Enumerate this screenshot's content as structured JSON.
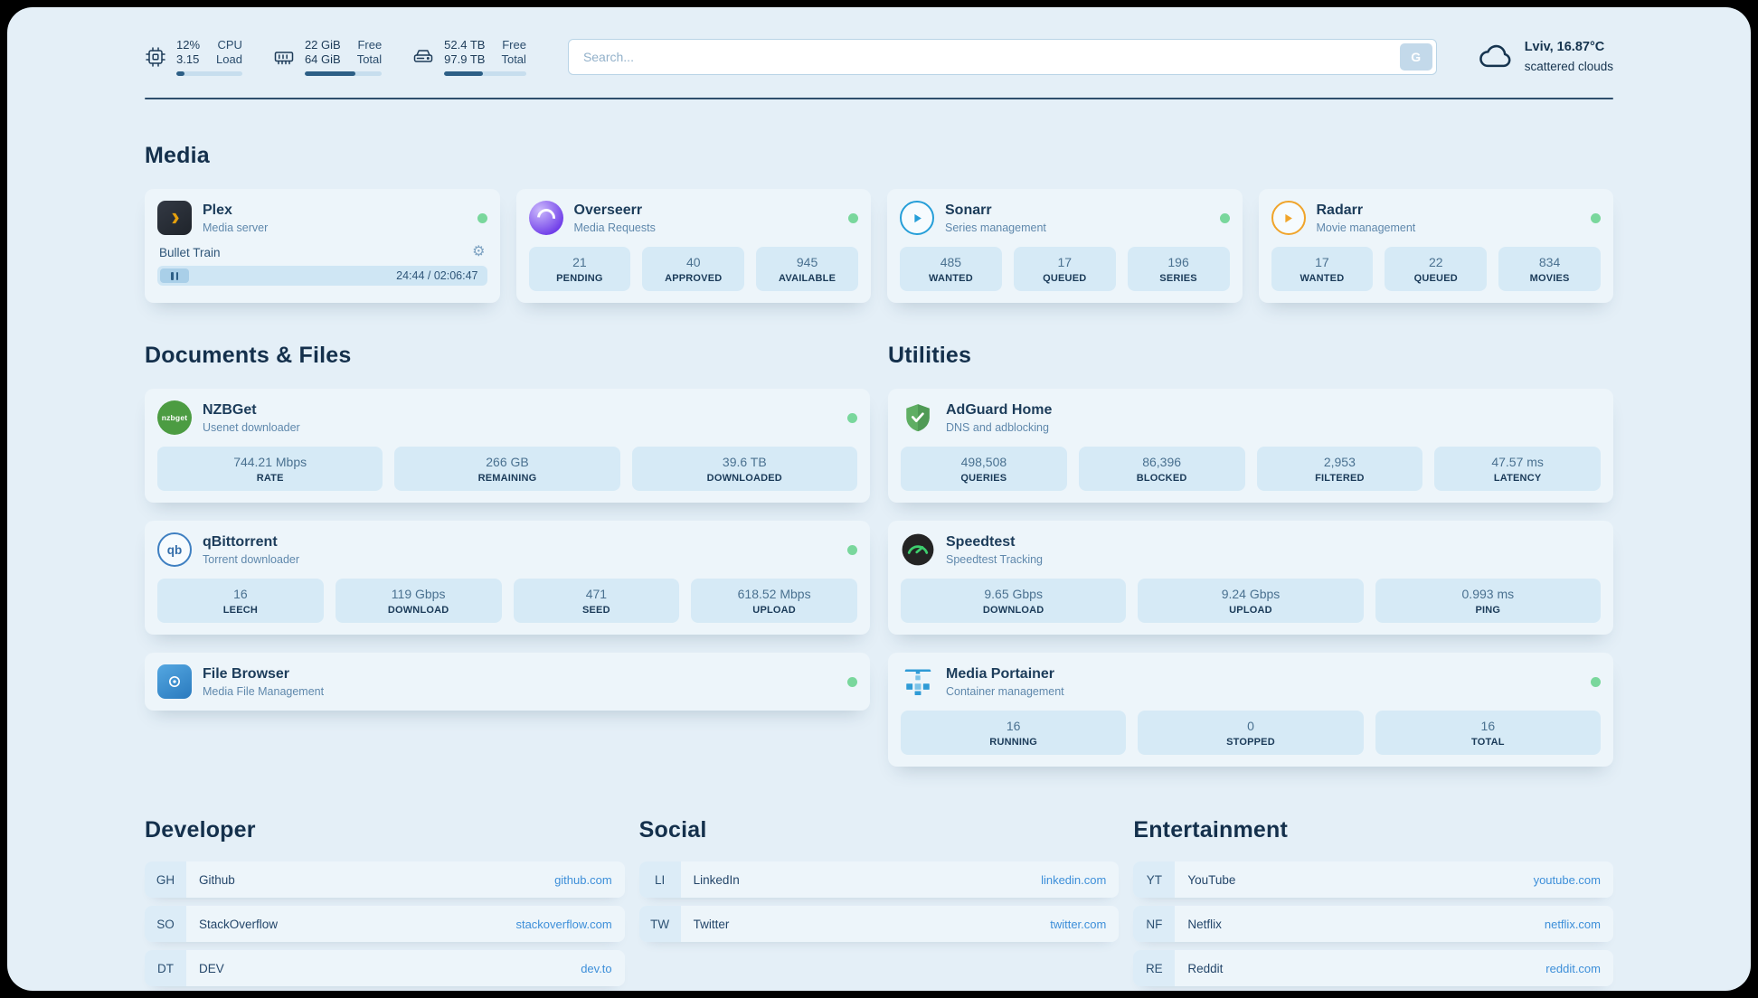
{
  "topbar": {
    "cpu": {
      "percent": "12%",
      "load": "3.15",
      "label_percent": "CPU",
      "label_load": "Load",
      "progress_pct": 12
    },
    "ram": {
      "free": "22 GiB",
      "total": "64 GiB",
      "label_free": "Free",
      "label_total": "Total",
      "progress_pct": 66
    },
    "disk": {
      "free": "52.4 TB",
      "total": "97.9 TB",
      "label_free": "Free",
      "label_total": "Total",
      "progress_pct": 47
    },
    "search": {
      "placeholder": "Search...",
      "button_label": "G"
    },
    "weather": {
      "location": "Lviv, 16.87°C",
      "condition": "scattered clouds"
    }
  },
  "sections": {
    "media": "Media",
    "documents": "Documents & Files",
    "utilities": "Utilities",
    "developer": "Developer",
    "social": "Social",
    "entertainment": "Entertainment"
  },
  "services": {
    "plex": {
      "name": "Plex",
      "subtitle": "Media server",
      "now_playing": "Bullet Train",
      "time": "24:44 / 02:06:47"
    },
    "overseerr": {
      "name": "Overseerr",
      "subtitle": "Media Requests",
      "stats": [
        {
          "value": "21",
          "label": "PENDING"
        },
        {
          "value": "40",
          "label": "APPROVED"
        },
        {
          "value": "945",
          "label": "AVAILABLE"
        }
      ]
    },
    "sonarr": {
      "name": "Sonarr",
      "subtitle": "Series management",
      "stats": [
        {
          "value": "485",
          "label": "WANTED"
        },
        {
          "value": "17",
          "label": "QUEUED"
        },
        {
          "value": "196",
          "label": "SERIES"
        }
      ]
    },
    "radarr": {
      "name": "Radarr",
      "subtitle": "Movie management",
      "stats": [
        {
          "value": "17",
          "label": "WANTED"
        },
        {
          "value": "22",
          "label": "QUEUED"
        },
        {
          "value": "834",
          "label": "MOVIES"
        }
      ]
    },
    "nzbget": {
      "name": "NZBGet",
      "subtitle": "Usenet downloader",
      "stats": [
        {
          "value": "744.21 Mbps",
          "label": "RATE"
        },
        {
          "value": "266 GB",
          "label": "REMAINING"
        },
        {
          "value": "39.6 TB",
          "label": "DOWNLOADED"
        }
      ]
    },
    "qbittorrent": {
      "name": "qBittorrent",
      "subtitle": "Torrent downloader",
      "stats": [
        {
          "value": "16",
          "label": "LEECH"
        },
        {
          "value": "119 Gbps",
          "label": "DOWNLOAD"
        },
        {
          "value": "471",
          "label": "SEED"
        },
        {
          "value": "618.52 Mbps",
          "label": "UPLOAD"
        }
      ]
    },
    "filebrowser": {
      "name": "File Browser",
      "subtitle": "Media File Management"
    },
    "adguard": {
      "name": "AdGuard Home",
      "subtitle": "DNS and adblocking",
      "stats": [
        {
          "value": "498,508",
          "label": "QUERIES"
        },
        {
          "value": "86,396",
          "label": "BLOCKED"
        },
        {
          "value": "2,953",
          "label": "FILTERED"
        },
        {
          "value": "47.57 ms",
          "label": "LATENCY"
        }
      ]
    },
    "speedtest": {
      "name": "Speedtest",
      "subtitle": "Speedtest Tracking",
      "stats": [
        {
          "value": "9.65 Gbps",
          "label": "DOWNLOAD"
        },
        {
          "value": "9.24 Gbps",
          "label": "UPLOAD"
        },
        {
          "value": "0.993 ms",
          "label": "PING"
        }
      ]
    },
    "portainer": {
      "name": "Media Portainer",
      "subtitle": "Container management",
      "stats": [
        {
          "value": "16",
          "label": "RUNNING"
        },
        {
          "value": "0",
          "label": "STOPPED"
        },
        {
          "value": "16",
          "label": "TOTAL"
        }
      ]
    }
  },
  "bookmarks": {
    "developer": [
      {
        "abbr": "GH",
        "name": "Github",
        "url": "github.com"
      },
      {
        "abbr": "SO",
        "name": "StackOverflow",
        "url": "stackoverflow.com"
      },
      {
        "abbr": "DT",
        "name": "DEV",
        "url": "dev.to"
      }
    ],
    "social": [
      {
        "abbr": "LI",
        "name": "LinkedIn",
        "url": "linkedin.com"
      },
      {
        "abbr": "TW",
        "name": "Twitter",
        "url": "twitter.com"
      }
    ],
    "entertainment": [
      {
        "abbr": "YT",
        "name": "YouTube",
        "url": "youtube.com"
      },
      {
        "abbr": "NF",
        "name": "Netflix",
        "url": "netflix.com"
      },
      {
        "abbr": "RE",
        "name": "Reddit",
        "url": "reddit.com"
      }
    ]
  },
  "icons": {
    "nzbget_text": "nzbget",
    "qb_text": "qb"
  },
  "colors": {
    "status_online": "#79d79c",
    "link": "#3d8fd9",
    "plex_accent": "#e5a00d",
    "overseerr_purple": "#6d3ae8",
    "sonarr_blue": "#259ed8",
    "radarr_amber": "#f0a42a",
    "nzbget_green": "#4c9c42",
    "adguard_green": "#5fae63",
    "speedtest_green": "#3ecf6e",
    "portainer_blue": "#2f9bd6"
  }
}
